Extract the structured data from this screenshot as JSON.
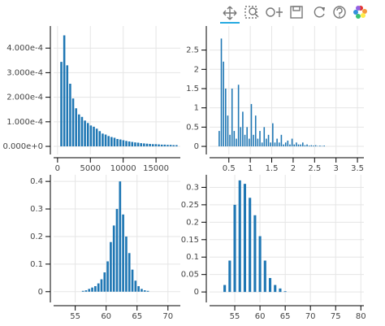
{
  "chart_data": [
    {
      "type": "histogram",
      "color": "#1f77b4",
      "grid": true,
      "bins": [
        350,
        800,
        1250,
        1700,
        2150,
        2600,
        3050,
        3500,
        3950,
        4400,
        4850,
        5300,
        5750,
        6200,
        6650,
        7100,
        7550,
        8000,
        8450,
        8900,
        9350,
        9800,
        10250,
        10700,
        11150,
        11600,
        12050,
        12500,
        12950,
        13400,
        13850,
        14300,
        14750,
        15200,
        15650,
        16100,
        16550,
        17000,
        17450,
        17900,
        18350
      ],
      "values": [
        0.000344,
        0.000452,
        0.00033,
        0.000255,
        0.000195,
        0.000155,
        0.00013,
        0.00012,
        0.000105,
        9.5e-05,
        8.5e-05,
        8e-05,
        7.2e-05,
        6.2e-05,
        5.2e-05,
        4.8e-05,
        4.2e-05,
        3.8e-05,
        3.5e-05,
        3e-05,
        2.8e-05,
        2.5e-05,
        2.2e-05,
        2e-05,
        1.8e-05,
        1.6e-05,
        1.5e-05,
        1.3e-05,
        1.2e-05,
        1.1e-05,
        1e-05,
        9e-06,
        9e-06,
        8e-06,
        7e-06,
        7e-06,
        6e-06,
        6e-06,
        5e-06,
        5e-06
      ],
      "xlim": [
        -600,
        18700
      ],
      "ylim": [
        -3.3e-05,
        0.00049
      ],
      "xticks": [
        0,
        5000,
        10000,
        15000
      ],
      "yticks": [
        {
          "value": 0,
          "label": "0.000e+0"
        },
        {
          "value": 0.0001,
          "label": "1.000e-4"
        },
        {
          "value": 0.0002,
          "label": "2.000e-4"
        },
        {
          "value": 0.0003,
          "label": "3.000e-4"
        },
        {
          "value": 0.0004,
          "label": "4.000e-4"
        }
      ]
    },
    {
      "type": "histogram",
      "color": "#1f77b4",
      "grid": true,
      "bins": [
        0.25,
        0.3,
        0.35,
        0.4,
        0.45,
        0.5,
        0.55,
        0.6,
        0.65,
        0.7,
        0.75,
        0.8,
        0.85,
        0.9,
        0.95,
        1,
        1.05,
        1.1,
        1.15,
        1.2,
        1.25,
        1.3,
        1.35,
        1.4,
        1.45,
        1.5,
        1.55,
        1.6,
        1.65,
        1.7,
        1.75,
        1.8,
        1.85,
        1.9,
        1.95,
        2,
        2.05,
        2.1,
        2.15,
        2.2,
        2.25,
        2.3,
        2.35,
        2.4,
        2.45,
        2.5,
        2.55,
        2.6,
        2.65,
        2.7,
        2.75
      ],
      "values": [
        0.4,
        2.8,
        2.2,
        1.5,
        0.8,
        0.3,
        1.5,
        0.4,
        0.2,
        1.6,
        0.5,
        0.9,
        0.3,
        0.5,
        0.2,
        1.1,
        0.3,
        0.8,
        0.2,
        0.4,
        0.1,
        0.5,
        0.2,
        0.3,
        0.1,
        0.6,
        0.1,
        0.2,
        0.1,
        0.3,
        0.05,
        0.1,
        0.15,
        0.05,
        0.2,
        0.05,
        0.1,
        0.05,
        0.05,
        0.1,
        0.03,
        0.05,
        0.02,
        0.03,
        0.02,
        0.03,
        0.01,
        0.02,
        0.01,
        0.02
      ],
      "xlim": [
        0.05,
        3.65
      ],
      "ylim": [
        -0.21,
        3.125
      ],
      "xticks": [
        0.5,
        1,
        1.5,
        2,
        2.5,
        3,
        3.5
      ],
      "yticks": [
        0,
        0.5,
        1,
        1.5,
        2,
        2.5
      ]
    },
    {
      "type": "histogram",
      "color": "#1f77b4",
      "grid": true,
      "bins": [
        56,
        56.5,
        57,
        57.5,
        58,
        58.5,
        59,
        59.5,
        60,
        60.5,
        61,
        61.5,
        62,
        62.5,
        63,
        63.5,
        64,
        64.5,
        65,
        65.5,
        66,
        66.5,
        67
      ],
      "values": [
        0.003,
        0.005,
        0.01,
        0.015,
        0.02,
        0.03,
        0.045,
        0.07,
        0.11,
        0.18,
        0.24,
        0.3,
        0.4,
        0.28,
        0.2,
        0.14,
        0.08,
        0.04,
        0.02,
        0.01,
        0.005,
        0.003
      ],
      "xlim": [
        51.5,
        72
      ],
      "ylim": [
        -0.039,
        0.424
      ],
      "xticks": [
        55,
        60,
        65,
        70
      ],
      "yticks": [
        0,
        0.1,
        0.2,
        0.3,
        0.4
      ]
    },
    {
      "type": "histogram",
      "color": "#1f77b4",
      "grid": true,
      "bins": [
        52.5,
        53.5,
        54.5,
        55.5,
        56.5,
        57.5,
        58.5,
        59.5,
        60.5,
        61.5,
        62.5,
        63.5,
        64.5,
        65.5
      ],
      "values": [
        0.02,
        0.09,
        0.25,
        0.32,
        0.31,
        0.27,
        0.22,
        0.16,
        0.09,
        0.04,
        0.02,
        0.01,
        0.002
      ],
      "xlim": [
        50,
        80.6
      ],
      "ylim": [
        -0.03,
        0.336
      ],
      "xticks": [
        55,
        60,
        65,
        70,
        75,
        80
      ],
      "yticks": [
        0,
        0.05,
        0.1,
        0.15,
        0.2,
        0.25,
        0.3
      ]
    }
  ]
}
